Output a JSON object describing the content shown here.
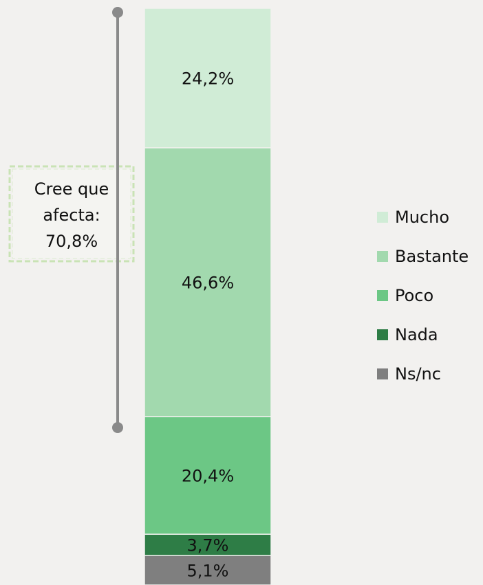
{
  "chart_data": {
    "type": "stacked_bar",
    "series": [
      {
        "name": "Mucho",
        "color": "#d0ecd6",
        "values": [
          24.2
        ],
        "value_labels": [
          "24,2%"
        ]
      },
      {
        "name": "Bastante",
        "color": "#a2d9ae",
        "values": [
          46.6
        ],
        "value_labels": [
          "46,6%"
        ]
      },
      {
        "name": "Poco",
        "color": "#6cc785",
        "values": [
          20.4
        ],
        "value_labels": [
          "20,4%"
        ]
      },
      {
        "name": "Nada",
        "color": "#2e7d46",
        "values": [
          3.7
        ],
        "value_labels": [
          "3,7%"
        ]
      },
      {
        "name": "Ns/nc",
        "color": "#7f7f7f",
        "values": [
          5.1
        ],
        "value_labels": [
          "5,1%"
        ]
      }
    ],
    "annotation": [
      "Cree que",
      "afecta:",
      "70,8%"
    ]
  }
}
